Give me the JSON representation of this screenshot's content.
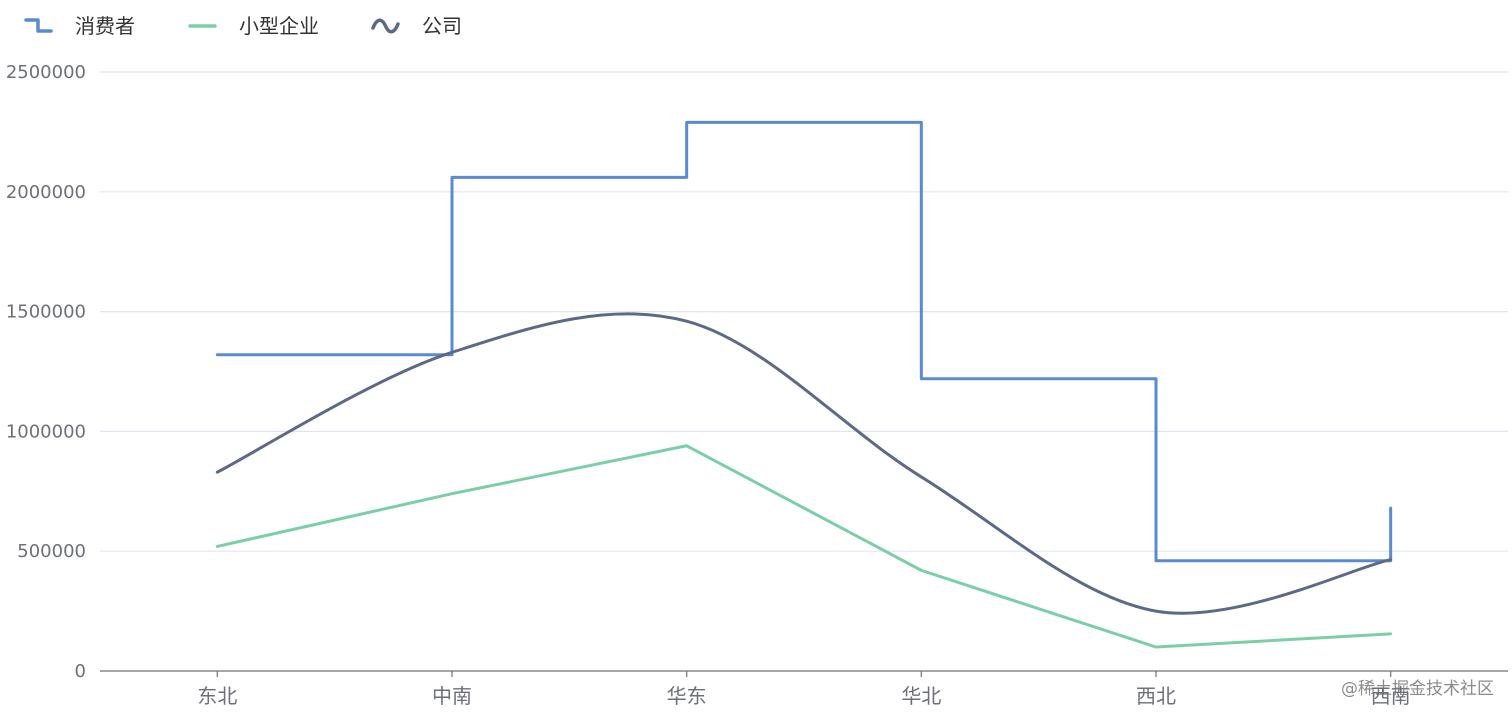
{
  "chart_data": {
    "type": "line",
    "categories": [
      "东北",
      "中南",
      "华东",
      "华北",
      "西北",
      "西南"
    ],
    "y_ticks": [
      "0",
      "500000",
      "1000000",
      "1500000",
      "2000000",
      "2500000"
    ],
    "ylim": [
      0,
      2500000
    ],
    "grid": true,
    "legend_position": "top-left",
    "series": [
      {
        "name": "消费者",
        "style": "step",
        "color": "#5b8ad4",
        "values": [
          1320000,
          2060000,
          2290000,
          1220000,
          460000,
          680000
        ]
      },
      {
        "name": "小型企业",
        "style": "straight",
        "color": "#7bcfa6",
        "values": [
          520000,
          740000,
          940000,
          420000,
          100000,
          155000
        ]
      },
      {
        "name": "公司",
        "style": "smooth",
        "color": "#5d6a87",
        "values": [
          830000,
          1330000,
          1460000,
          810000,
          250000,
          465000
        ]
      }
    ]
  },
  "watermark": "@稀土掘金技术社区"
}
